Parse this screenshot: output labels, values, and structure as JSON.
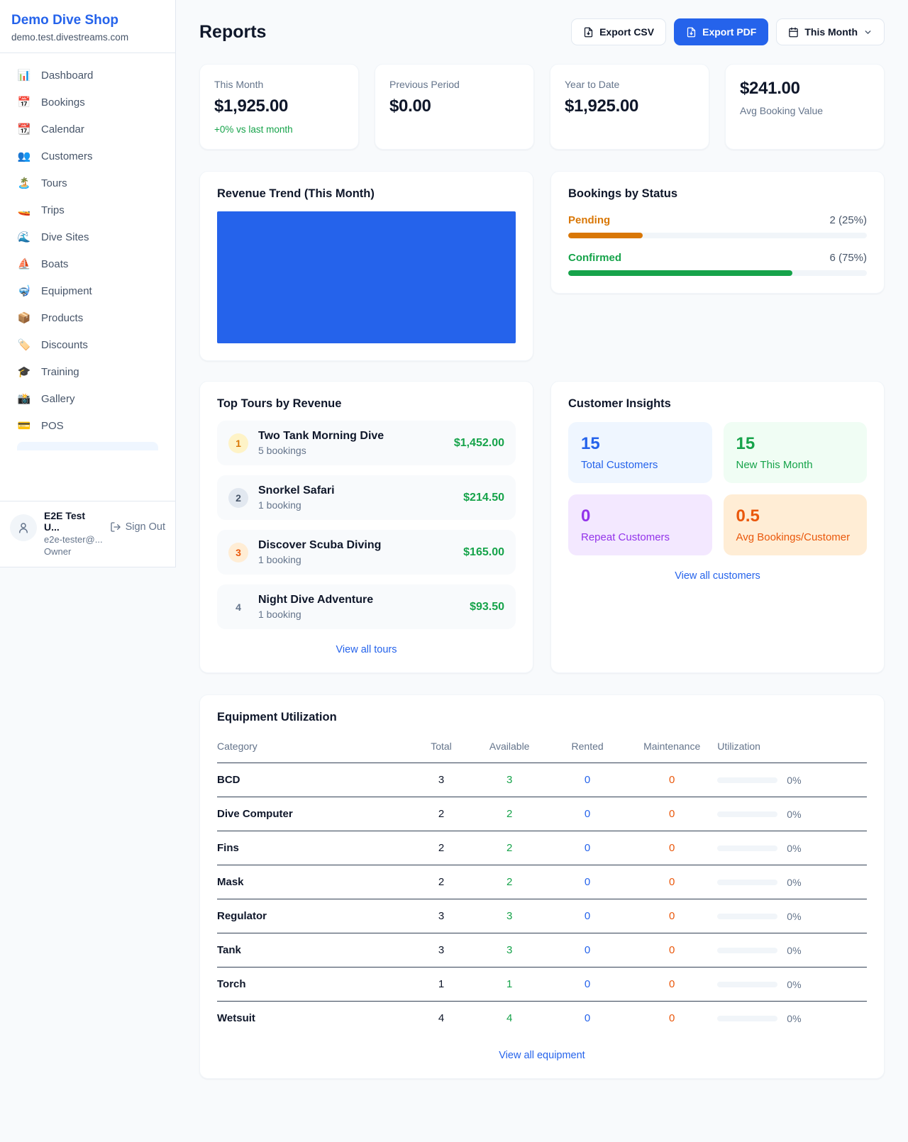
{
  "colors": {
    "accent": "#2563eb",
    "green": "#16a34a",
    "amber": "#d97706",
    "deep_orange": "#ea580c",
    "purple": "#9333ea"
  },
  "sidebar": {
    "brand": {
      "name": "Demo Dive Shop",
      "domain": "demo.test.divestreams.com"
    },
    "nav": [
      {
        "icon": "📊",
        "label": "Dashboard"
      },
      {
        "icon": "📅",
        "label": "Bookings"
      },
      {
        "icon": "📆",
        "label": "Calendar"
      },
      {
        "icon": "👥",
        "label": "Customers"
      },
      {
        "icon": "🏝️",
        "label": "Tours"
      },
      {
        "icon": "🚤",
        "label": "Trips"
      },
      {
        "icon": "🌊",
        "label": "Dive Sites"
      },
      {
        "icon": "⛵",
        "label": "Boats"
      },
      {
        "icon": "🤿",
        "label": "Equipment"
      },
      {
        "icon": "📦",
        "label": "Products"
      },
      {
        "icon": "🏷️",
        "label": "Discounts"
      },
      {
        "icon": "🎓",
        "label": "Training"
      },
      {
        "icon": "📸",
        "label": "Gallery"
      },
      {
        "icon": "💳",
        "label": "POS"
      }
    ],
    "user": {
      "name": "E2E Test U...",
      "email": "e2e-tester@...",
      "role": "Owner",
      "signout_label": "Sign Out"
    }
  },
  "header": {
    "title": "Reports",
    "export_csv_label": "Export CSV",
    "export_pdf_label": "Export PDF",
    "period_label": "This Month"
  },
  "stats": {
    "this_month": {
      "label": "This Month",
      "value": "$1,925.00",
      "delta": "+0% vs last month"
    },
    "previous_period": {
      "label": "Previous Period",
      "value": "$0.00"
    },
    "year_to_date": {
      "label": "Year to Date",
      "value": "$1,925.00"
    },
    "avg_booking": {
      "value": "$241.00",
      "label": "Avg Booking Value"
    }
  },
  "revenue_trend": {
    "title": "Revenue Trend (This Month)"
  },
  "chart_data": [
    {
      "type": "bar",
      "title": "Revenue Trend (This Month)",
      "categories": [
        "This Month"
      ],
      "values": [
        1925.0
      ],
      "note": "single full-width solid blue bar filling entire plot area, no axes or labels visible",
      "bar_color": "#2563eb"
    },
    {
      "type": "bar",
      "title": "Bookings by Status",
      "categories": [
        "Pending",
        "Confirmed"
      ],
      "values": [
        2,
        6
      ],
      "percents": [
        25,
        75
      ]
    }
  ],
  "bookings_status": {
    "title": "Bookings by Status",
    "items": [
      {
        "label": "Pending",
        "count": "2 (25%)",
        "pct": 25
      },
      {
        "label": "Confirmed",
        "count": "6 (75%)",
        "pct": 75
      }
    ]
  },
  "top_tours": {
    "title": "Top Tours by Revenue",
    "items": [
      {
        "rank": "1",
        "name": "Two Tank Morning Dive",
        "bookings": "5 bookings",
        "revenue": "$1,452.00"
      },
      {
        "rank": "2",
        "name": "Snorkel Safari",
        "bookings": "1 booking",
        "revenue": "$214.50"
      },
      {
        "rank": "3",
        "name": "Discover Scuba Diving",
        "bookings": "1 booking",
        "revenue": "$165.00"
      },
      {
        "rank": "4",
        "name": "Night Dive Adventure",
        "bookings": "1 booking",
        "revenue": "$93.50"
      }
    ],
    "view_all": "View all tours"
  },
  "customer_insights": {
    "title": "Customer Insights",
    "cards": [
      {
        "value": "15",
        "label": "Total Customers"
      },
      {
        "value": "15",
        "label": "New This Month"
      },
      {
        "value": "0",
        "label": "Repeat Customers"
      },
      {
        "value": "0.5",
        "label": "Avg Bookings/Customer"
      }
    ],
    "view_all": "View all customers"
  },
  "equipment": {
    "title": "Equipment Utilization",
    "columns": [
      "Category",
      "Total",
      "Available",
      "Rented",
      "Maintenance",
      "Utilization"
    ],
    "rows": [
      {
        "category": "BCD",
        "total": "3",
        "available": "3",
        "rented": "0",
        "maintenance": "0",
        "utilization": "0%",
        "util_pct": 0
      },
      {
        "category": "Dive Computer",
        "total": "2",
        "available": "2",
        "rented": "0",
        "maintenance": "0",
        "utilization": "0%",
        "util_pct": 0
      },
      {
        "category": "Fins",
        "total": "2",
        "available": "2",
        "rented": "0",
        "maintenance": "0",
        "utilization": "0%",
        "util_pct": 0
      },
      {
        "category": "Mask",
        "total": "2",
        "available": "2",
        "rented": "0",
        "maintenance": "0",
        "utilization": "0%",
        "util_pct": 0
      },
      {
        "category": "Regulator",
        "total": "3",
        "available": "3",
        "rented": "0",
        "maintenance": "0",
        "utilization": "0%",
        "util_pct": 0
      },
      {
        "category": "Tank",
        "total": "3",
        "available": "3",
        "rented": "0",
        "maintenance": "0",
        "utilization": "0%",
        "util_pct": 0
      },
      {
        "category": "Torch",
        "total": "1",
        "available": "1",
        "rented": "0",
        "maintenance": "0",
        "utilization": "0%",
        "util_pct": 0
      },
      {
        "category": "Wetsuit",
        "total": "4",
        "available": "4",
        "rented": "0",
        "maintenance": "0",
        "utilization": "0%",
        "util_pct": 0
      }
    ],
    "view_all": "View all equipment"
  }
}
